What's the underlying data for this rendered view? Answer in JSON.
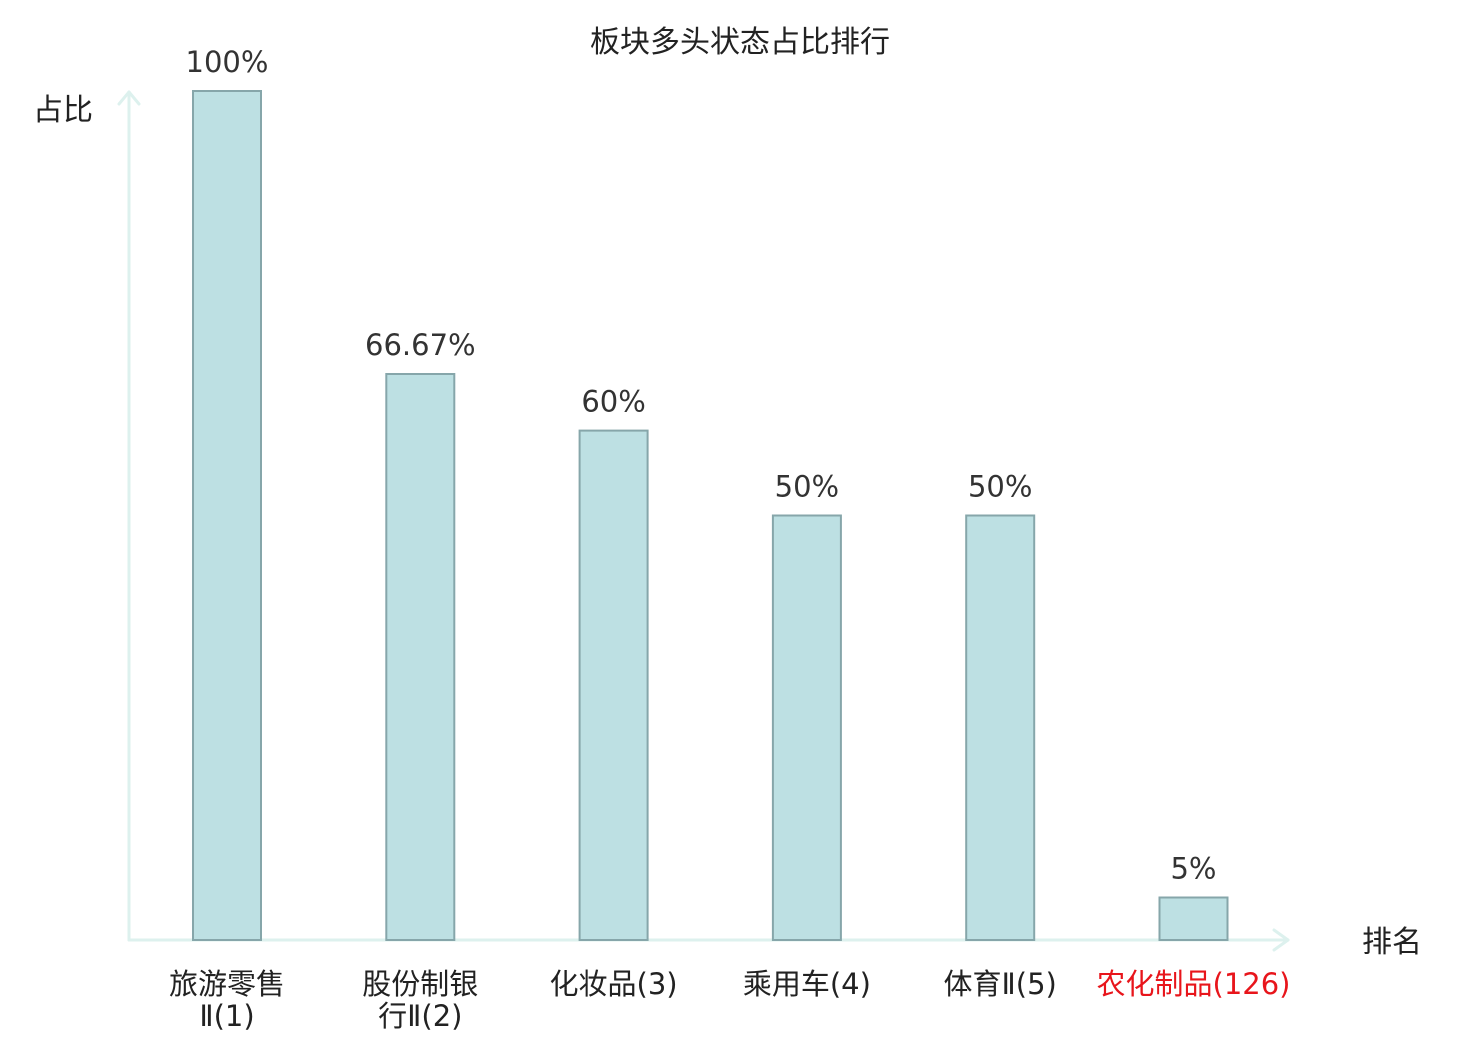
{
  "chart_data": {
    "type": "bar",
    "title": "板块多头状态占比排行",
    "ylabel": "占比",
    "xlabel": "排名",
    "ylim": [
      0,
      100
    ],
    "grid": false,
    "legend": "none",
    "categories": [
      {
        "lines": [
          "旅游零售",
          "Ⅱ(1)"
        ],
        "highlight": false
      },
      {
        "lines": [
          "股份制银",
          "行Ⅱ(2)"
        ],
        "highlight": false
      },
      {
        "lines": [
          "化妆品(3)"
        ],
        "highlight": false
      },
      {
        "lines": [
          "乘用车(4)"
        ],
        "highlight": false
      },
      {
        "lines": [
          "体育Ⅱ(5)"
        ],
        "highlight": false
      },
      {
        "lines": [
          "农化制品(126)"
        ],
        "highlight": true
      }
    ],
    "values": [
      100,
      66.67,
      60,
      50,
      50,
      5
    ],
    "value_labels": [
      "100%",
      "66.67%",
      "60%",
      "50%",
      "50%",
      "5%"
    ],
    "colors": {
      "bar_fill": "#bde0e3",
      "bar_stroke": "#86a6aa",
      "axis": "#ddf1ee",
      "highlight_text": "#e8151b"
    }
  }
}
